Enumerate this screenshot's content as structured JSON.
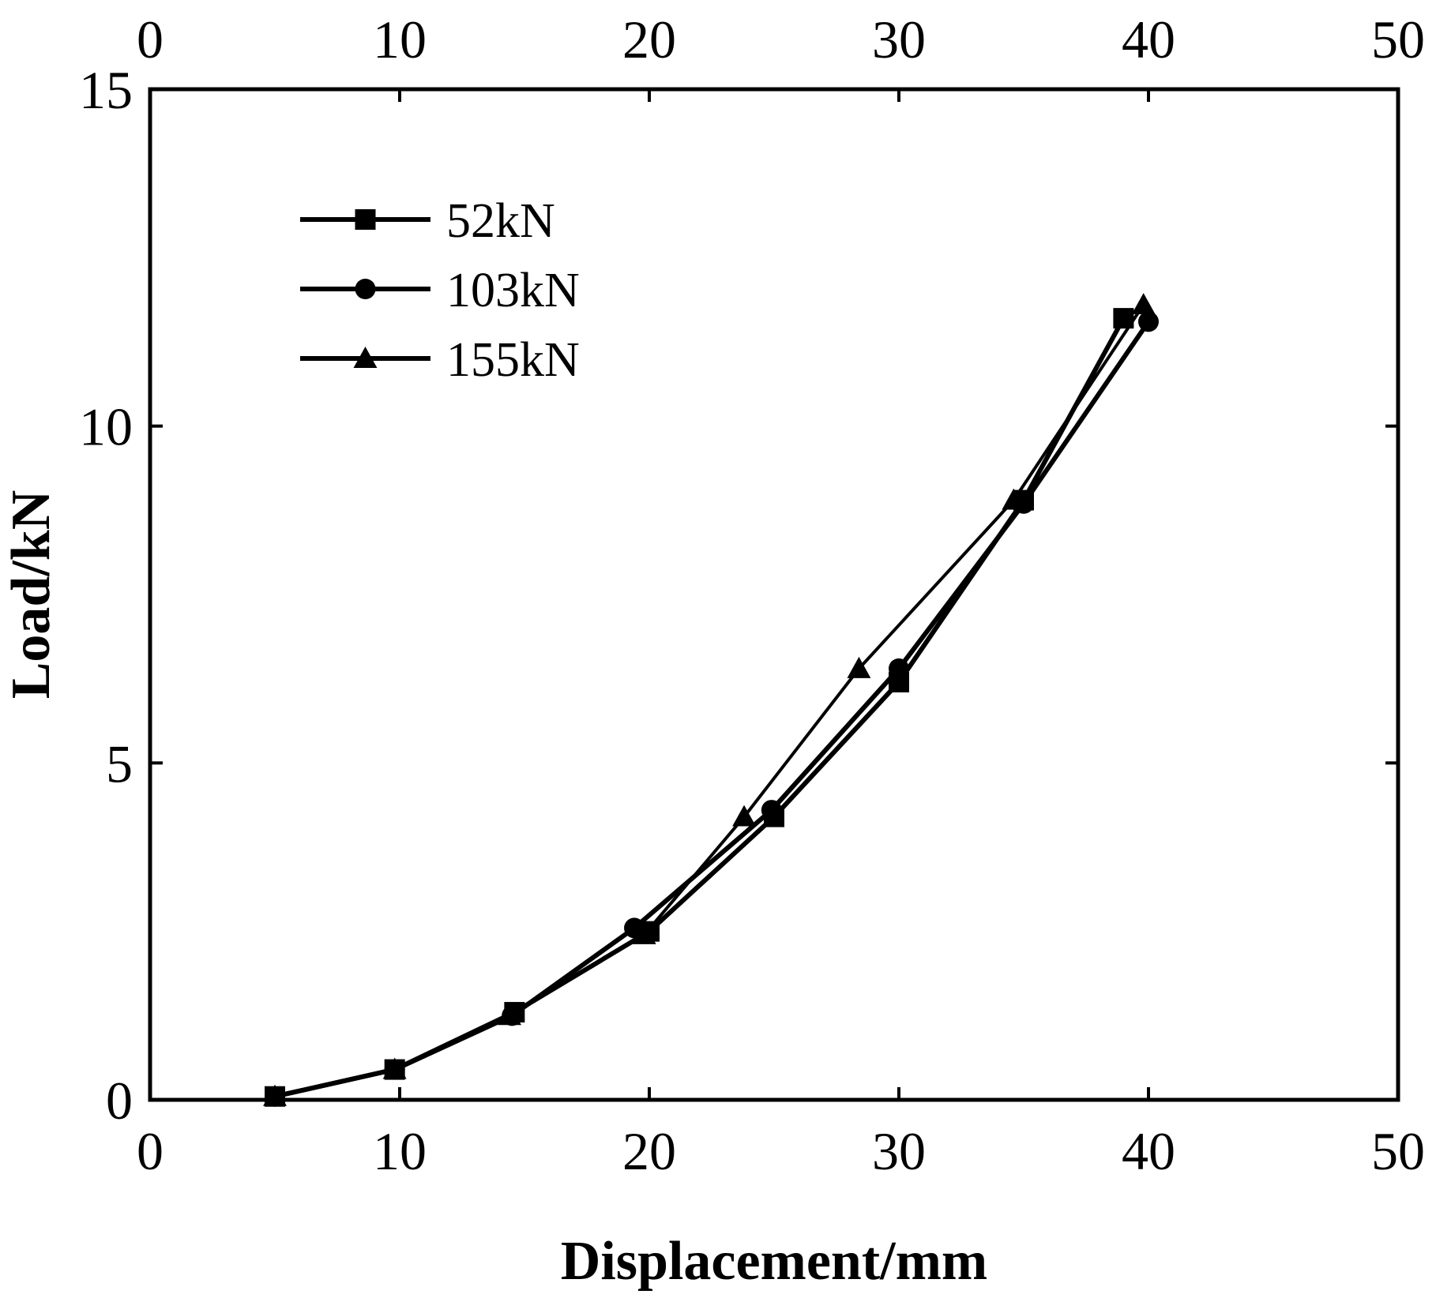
{
  "chart_data": {
    "type": "line",
    "xlabel": "Displacement/mm",
    "ylabel": "Load/kN",
    "xlim": [
      0,
      50
    ],
    "ylim": [
      0,
      15
    ],
    "x_ticks": [
      "0",
      "10",
      "20",
      "30",
      "40",
      "50"
    ],
    "y_ticks": [
      "0",
      "5",
      "10",
      "15"
    ],
    "top_axis_ticks": [
      "0",
      "10",
      "20",
      "30",
      "40",
      "50"
    ],
    "grid": false,
    "legend_position": "top-left",
    "series": [
      {
        "name": "52kN",
        "marker": "square",
        "color": "#000000",
        "x": [
          5,
          9.8,
          14.6,
          20,
          25,
          30,
          35,
          39
        ],
        "y": [
          0.05,
          0.45,
          1.3,
          2.5,
          4.2,
          6.2,
          8.9,
          11.6
        ]
      },
      {
        "name": "103kN",
        "marker": "circle",
        "color": "#000000",
        "x": [
          5,
          9.8,
          14.5,
          19.4,
          24.9,
          30,
          35,
          40
        ],
        "y": [
          0.05,
          0.45,
          1.25,
          2.55,
          4.3,
          6.4,
          8.85,
          11.55
        ]
      },
      {
        "name": "155kN",
        "marker": "triangle",
        "color": "#000000",
        "x": [
          5,
          9.8,
          14.4,
          19.8,
          23.8,
          28.4,
          34.6,
          39.8
        ],
        "y": [
          0.05,
          0.45,
          1.25,
          2.45,
          4.2,
          6.4,
          8.9,
          11.8
        ]
      }
    ]
  }
}
